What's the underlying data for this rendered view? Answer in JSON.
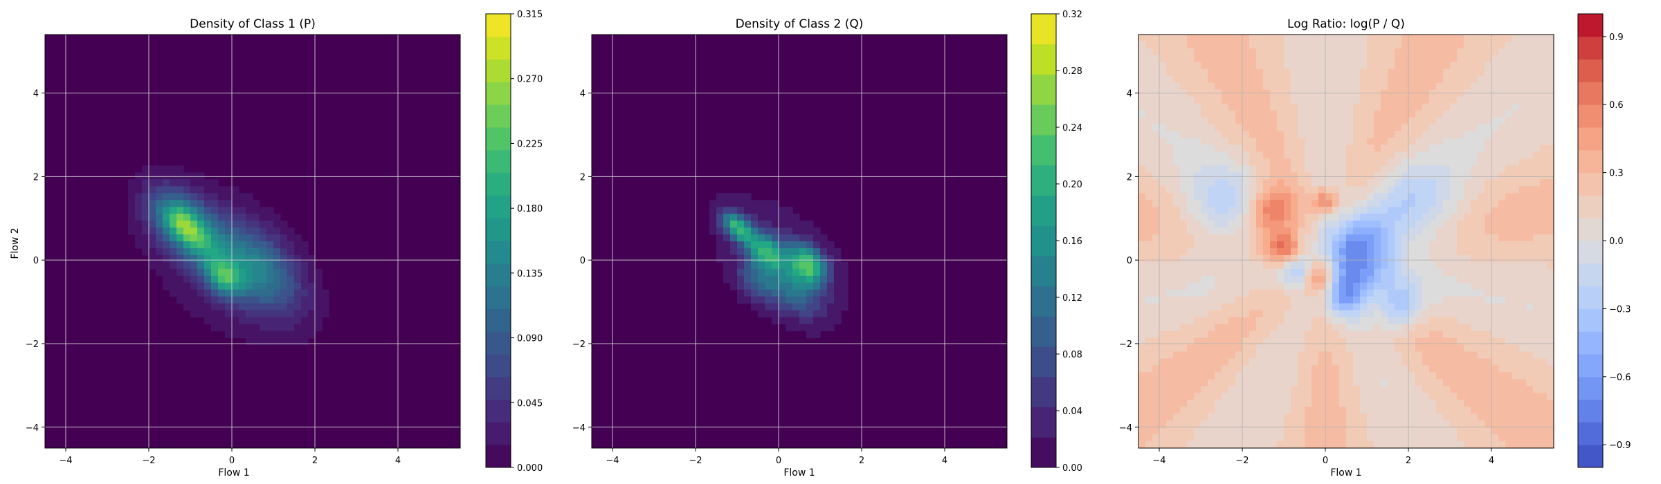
{
  "colors": {
    "viridis": [
      "#440154",
      "#482475",
      "#414487",
      "#355f8d",
      "#2a788e",
      "#21918c",
      "#22a884",
      "#44bf70",
      "#7ad151",
      "#bddf26",
      "#fde725"
    ],
    "coolwarm": [
      "#3b4cc0",
      "#5977e3",
      "#7b9ff9",
      "#9ebeff",
      "#c0d4f5",
      "#dddcdc",
      "#f2cbb7",
      "#f7ac8e",
      "#ee8468",
      "#d65244",
      "#b40426"
    ],
    "grid_dark_bg": "#b0b0b0",
    "grid_light_bg": "#b0b0b0"
  },
  "chart_data": [
    {
      "type": "heatmap",
      "title": "Density of Class 1 (P)",
      "xlabel": "Flow 1",
      "ylabel": "Flow 2",
      "xlim": [
        -4.5,
        5.5
      ],
      "ylim": [
        -4.5,
        5.4
      ],
      "xticks": [
        -4,
        -2,
        0,
        2,
        4
      ],
      "yticks": [
        -4,
        -2,
        0,
        2,
        4
      ],
      "xtick_labels": [
        "−4",
        "−2",
        "0",
        "2",
        "4"
      ],
      "ytick_labels": [
        "−4",
        "−2",
        "0",
        "2",
        "4"
      ],
      "grid": true,
      "colormap": "viridis",
      "colorbar": {
        "min": 0.0,
        "max": 0.315,
        "levels": 21,
        "ticks": [
          0.0,
          0.045,
          0.09,
          0.135,
          0.18,
          0.225,
          0.27,
          0.315
        ],
        "tick_labels": [
          "0.000",
          "0.045",
          "0.090",
          "0.135",
          "0.180",
          "0.225",
          "0.270",
          "0.315"
        ]
      },
      "peaks": [
        {
          "x": -1.1,
          "y": 0.8,
          "sx": 0.55,
          "sy": 0.45,
          "amp": 0.18
        },
        {
          "x": -1.3,
          "y": 1.0,
          "sx": 0.25,
          "sy": 0.25,
          "amp": 0.05
        },
        {
          "x": -0.9,
          "y": 0.6,
          "sx": 0.25,
          "sy": 0.2,
          "amp": 0.05
        },
        {
          "x": -0.2,
          "y": -0.4,
          "sx": 0.3,
          "sy": 0.3,
          "amp": 0.15
        },
        {
          "x": 0.6,
          "y": -0.2,
          "sx": 0.7,
          "sy": 0.6,
          "amp": 0.12
        },
        {
          "x": -0.3,
          "y": 0.0,
          "sx": 1.4,
          "sy": 1.2,
          "amp": 0.035
        }
      ]
    },
    {
      "type": "heatmap",
      "title": "Density of Class 2 (Q)",
      "xlabel": "Flow 1",
      "ylabel": "",
      "xlim": [
        -4.5,
        5.5
      ],
      "ylim": [
        -4.5,
        5.4
      ],
      "xticks": [
        -4,
        -2,
        0,
        2,
        4
      ],
      "yticks": [
        -4,
        -2,
        0,
        2,
        4
      ],
      "xtick_labels": [
        "−4",
        "−2",
        "0",
        "2",
        "4"
      ],
      "ytick_labels": [
        "−4",
        "−2",
        "0",
        "2",
        "4"
      ],
      "grid": true,
      "colormap": "viridis",
      "colorbar": {
        "min": 0.0,
        "max": 0.32,
        "levels": 16,
        "ticks": [
          0.0,
          0.04,
          0.08,
          0.12,
          0.16,
          0.2,
          0.24,
          0.28,
          0.32
        ],
        "tick_labels": [
          "0.00",
          "0.04",
          "0.08",
          "0.12",
          "0.16",
          "0.20",
          "0.24",
          "0.28",
          "0.32"
        ]
      },
      "peaks": [
        {
          "x": -1.0,
          "y": 0.8,
          "sx": 0.25,
          "sy": 0.2,
          "amp": 0.2
        },
        {
          "x": -0.3,
          "y": 0.2,
          "sx": 0.3,
          "sy": 0.3,
          "amp": 0.18
        },
        {
          "x": 0.7,
          "y": -0.1,
          "sx": 0.3,
          "sy": 0.3,
          "amp": 0.2
        },
        {
          "x": 0.4,
          "y": -0.7,
          "sx": 0.4,
          "sy": 0.4,
          "amp": 0.1
        },
        {
          "x": -0.5,
          "y": -0.5,
          "sx": 0.3,
          "sy": 0.3,
          "amp": 0.08
        },
        {
          "x": 0.0,
          "y": 0.0,
          "sx": 1.3,
          "sy": 1.1,
          "amp": 0.04
        }
      ]
    },
    {
      "type": "heatmap",
      "title": "Log Ratio: log(P / Q)",
      "xlabel": "Flow 1",
      "ylabel": "",
      "xlim": [
        -4.5,
        5.5
      ],
      "ylim": [
        -4.5,
        5.4
      ],
      "xticks": [
        -4,
        -2,
        0,
        2,
        4
      ],
      "yticks": [
        -4,
        -2,
        0,
        2,
        4
      ],
      "xtick_labels": [
        "−4",
        "−2",
        "0",
        "2",
        "4"
      ],
      "ytick_labels": [
        "−4",
        "−2",
        "0",
        "2",
        "4"
      ],
      "grid": true,
      "colormap": "coolwarm",
      "colorbar": {
        "min": -1.0,
        "max": 1.0,
        "levels": 21,
        "ticks": [
          -0.9,
          -0.6,
          -0.3,
          0.0,
          0.3,
          0.6,
          0.9
        ],
        "tick_labels": [
          "−0.9",
          "−0.6",
          "−0.3",
          "0.0",
          "0.3",
          "0.6",
          "0.9"
        ]
      },
      "background_value": 0.22,
      "hotspots": [
        {
          "x": -1.3,
          "y": 1.2,
          "s": 0.4,
          "v": 0.6
        },
        {
          "x": -0.2,
          "y": -0.4,
          "s": 0.3,
          "v": 0.7
        },
        {
          "x": -1.0,
          "y": 0.3,
          "s": 0.3,
          "v": 0.5
        },
        {
          "x": 0.0,
          "y": 1.4,
          "s": 0.2,
          "v": 0.5
        },
        {
          "x": 0.8,
          "y": 0.2,
          "s": 0.6,
          "v": -0.65
        },
        {
          "x": 0.5,
          "y": -0.8,
          "s": 0.4,
          "v": -0.45
        },
        {
          "x": -0.6,
          "y": -0.3,
          "s": 0.3,
          "v": -0.4
        },
        {
          "x": 1.8,
          "y": -1.1,
          "s": 0.4,
          "v": -0.3
        },
        {
          "x": -2.5,
          "y": 1.2,
          "s": 0.7,
          "v": -0.15
        },
        {
          "x": 2.2,
          "y": 1.2,
          "s": 0.8,
          "v": -0.15
        }
      ]
    }
  ]
}
